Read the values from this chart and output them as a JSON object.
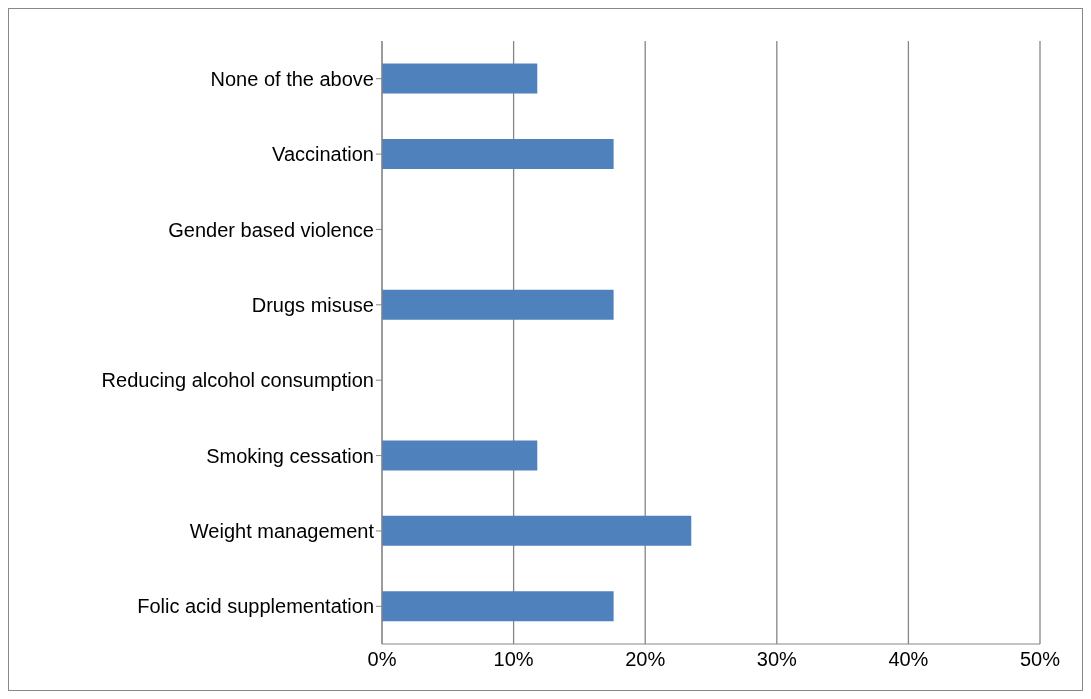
{
  "chart_data": {
    "type": "bar",
    "orientation": "horizontal",
    "categories": [
      "None of the above",
      "Vaccination",
      "Gender based violence",
      "Drugs misuse",
      "Reducing alcohol consumption",
      "Smoking cessation",
      "Weight management",
      "Folic acid supplementation"
    ],
    "values": [
      11.8,
      17.6,
      0,
      17.6,
      0,
      11.8,
      23.5,
      17.6
    ],
    "color": "#4f81bd",
    "xlim": [
      0,
      50
    ],
    "xticks": [
      {
        "value": 0,
        "label": "0%"
      },
      {
        "value": 10,
        "label": "10%"
      },
      {
        "value": 20,
        "label": "20%"
      },
      {
        "value": 30,
        "label": "30%"
      },
      {
        "value": 40,
        "label": "40%"
      },
      {
        "value": 50,
        "label": "50%"
      }
    ],
    "grid": "x",
    "legend": false
  }
}
